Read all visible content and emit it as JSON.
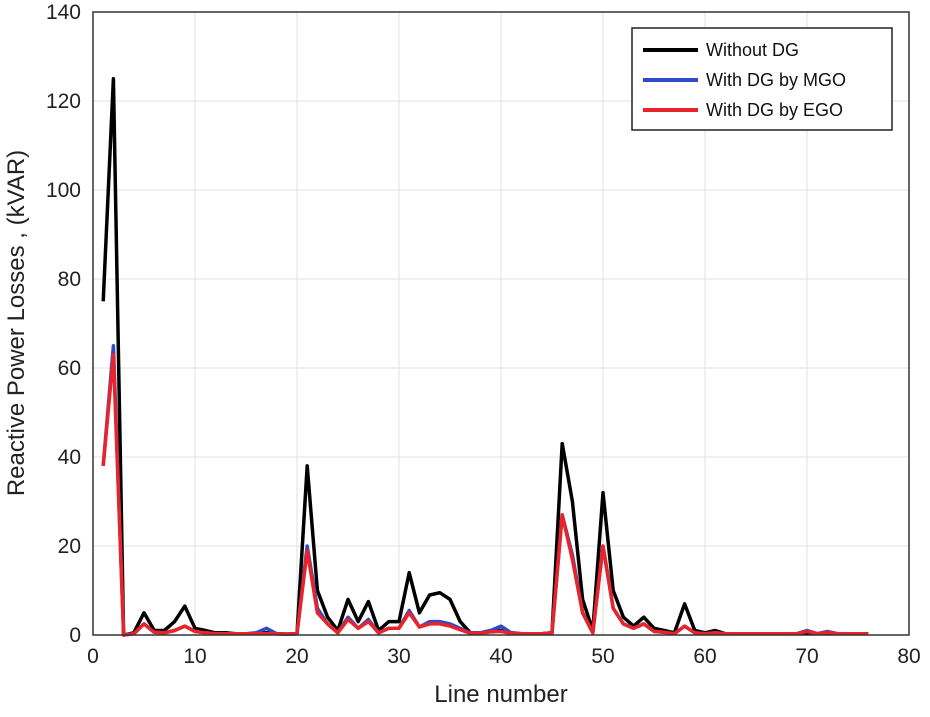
{
  "chart_data": {
    "type": "line",
    "title": "",
    "xlabel": "Line number",
    "ylabel": "Reactive Power Losses , (kVAR)",
    "xlim": [
      0,
      80
    ],
    "ylim": [
      0,
      140
    ],
    "xticks": [
      "0",
      "10",
      "20",
      "30",
      "40",
      "50",
      "60",
      "70",
      "80"
    ],
    "yticks": [
      "0",
      "20",
      "40",
      "60",
      "80",
      "100",
      "120",
      "140"
    ],
    "grid": true,
    "legend_position": "top-right",
    "x": [
      1,
      2,
      3,
      4,
      5,
      6,
      7,
      8,
      9,
      10,
      11,
      12,
      13,
      14,
      15,
      16,
      17,
      18,
      19,
      20,
      21,
      22,
      23,
      24,
      25,
      26,
      27,
      28,
      29,
      30,
      31,
      32,
      33,
      34,
      35,
      36,
      37,
      38,
      39,
      40,
      41,
      42,
      43,
      44,
      45,
      46,
      47,
      48,
      49,
      50,
      51,
      52,
      53,
      54,
      55,
      56,
      57,
      58,
      59,
      60,
      61,
      62,
      63,
      64,
      65,
      66,
      67,
      68,
      69,
      70,
      71,
      72,
      73,
      74,
      75,
      76
    ],
    "series": [
      {
        "name": "Without DG",
        "color": "#000000",
        "values": [
          75,
          125,
          0,
          0.5,
          5,
          1,
          1,
          3,
          6.5,
          1.5,
          1,
          0.5,
          0.5,
          0.3,
          0.3,
          0.3,
          0.5,
          0.3,
          0.2,
          0.3,
          38,
          10,
          4,
          1,
          8,
          3,
          7.5,
          1,
          3,
          3,
          14,
          5,
          9,
          9.5,
          8,
          3,
          0.5,
          0.5,
          1,
          1,
          0.5,
          0.3,
          0.3,
          0.3,
          0.5,
          43,
          30,
          8,
          1,
          32,
          10,
          4,
          2,
          4,
          1.5,
          1,
          0.5,
          7,
          1,
          0.5,
          1,
          0.3,
          0.3,
          0.3,
          0.3,
          0.3,
          0.3,
          0.3,
          0.3,
          0.3,
          0.3,
          0.3,
          0.3,
          0.3,
          0.3,
          0.3
        ]
      },
      {
        "name": "With DG by MGO",
        "color": "#2e4cc9",
        "values": [
          38,
          65,
          0,
          0.3,
          2.5,
          0.6,
          0.5,
          1,
          2,
          0.8,
          0.5,
          0.3,
          0.3,
          0.3,
          0.3,
          0.5,
          1.5,
          0.3,
          0.2,
          0.3,
          20,
          6,
          2.5,
          0.5,
          4,
          1.5,
          3.5,
          0.5,
          1.5,
          1.5,
          5.5,
          1.8,
          3,
          3,
          2.5,
          1.5,
          0.5,
          0.5,
          1,
          2,
          0.5,
          0.3,
          0.3,
          0.3,
          0.5,
          27,
          18,
          5,
          0.5,
          20,
          6,
          2.5,
          1.5,
          2.5,
          0.8,
          0.6,
          0.3,
          2,
          0.5,
          0.3,
          0.5,
          0.3,
          0.3,
          0.3,
          0.3,
          0.3,
          0.3,
          0.3,
          0.3,
          1,
          0.3,
          0.8,
          0.3,
          0.3,
          0.3,
          0.3
        ]
      },
      {
        "name": "With DG by EGO",
        "color": "#e8232a",
        "values": [
          38,
          63,
          0,
          0.3,
          2.5,
          0.6,
          0.5,
          1,
          2,
          0.8,
          0.5,
          0.3,
          0.3,
          0.3,
          0.3,
          0.3,
          0.3,
          0.3,
          0.2,
          0.3,
          19,
          5,
          2.5,
          0.5,
          3.5,
          1.5,
          3,
          0.5,
          1.5,
          1.5,
          5,
          1.8,
          2.5,
          2.5,
          2,
          1.2,
          0.4,
          0.4,
          0.7,
          0.8,
          0.4,
          0.3,
          0.3,
          0.3,
          0.5,
          27,
          17,
          5,
          0.5,
          20,
          6,
          2.5,
          1.5,
          2.5,
          0.8,
          0.6,
          0.3,
          2,
          0.5,
          0.3,
          0.5,
          0.3,
          0.3,
          0.3,
          0.3,
          0.3,
          0.3,
          0.3,
          0.3,
          0.8,
          0.3,
          0.6,
          0.3,
          0.3,
          0.3,
          0.3
        ]
      }
    ]
  }
}
